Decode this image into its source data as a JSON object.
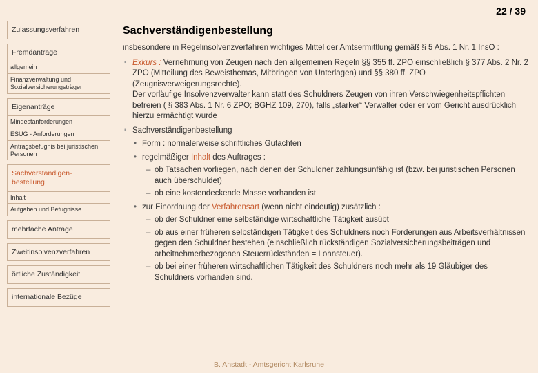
{
  "page": {
    "current": 22,
    "total": 39,
    "display": "22 / 39"
  },
  "colors": {
    "background": "#f9ecdf",
    "border": "#c9b098",
    "highlight": "#c85a2e",
    "footer": "#b08860"
  },
  "sidebar": {
    "items": [
      {
        "label": "Zulassungsverfahren",
        "type": "main"
      },
      {
        "label": "Fremdanträge",
        "type": "main",
        "group": true,
        "subs": [
          {
            "label": "allgemein"
          },
          {
            "label": "Finanzverwaltung und Sozialversicherungsträger"
          }
        ]
      },
      {
        "label": "Eigenanträge",
        "type": "main",
        "group": true,
        "subs": [
          {
            "label": "Mindestanforderungen"
          },
          {
            "label": "ESUG - Anforderungen"
          },
          {
            "label": "Antragsbefugnis bei juristischen Personen"
          }
        ]
      },
      {
        "label": "Sachverständigen-\nbestellung",
        "type": "main",
        "highlight": true,
        "group": true,
        "subs": [
          {
            "label": "Inhalt"
          },
          {
            "label": "Aufgaben und Befugnisse"
          }
        ]
      },
      {
        "label": "mehrfache Anträge",
        "type": "main"
      },
      {
        "label": "Zweitinsolvenzverfahren",
        "type": "main"
      },
      {
        "label": "örtliche Zuständigkeit",
        "type": "main"
      },
      {
        "label": "internationale Bezüge",
        "type": "main"
      }
    ]
  },
  "content": {
    "title": "Sachverständigenbestellung",
    "intro": "insbesondere in Regelinsolvenzverfahren wichtiges Mittel der Amtsermittlung gemäß § 5 Abs. 1 Nr. 1 InsO :",
    "bullets": [
      {
        "prefix_italic": "Exkurs :",
        "text": " Vernehmung von Zeugen nach den allgemeinen Regeln §§ 355 ff. ZPO einschließlich § 377 Abs. 2 Nr. 2 ZPO (Mitteilung des Beweisthemas, Mitbringen von Unterlagen) und §§ 380 ff. ZPO (Zeugnisverweigerungsrechte).\nDer vorläufige Insolvenzverwalter kann statt des Schuldners Zeugen von ihren Verschwiegenheitspflichten befreien ( § 383 Abs. 1 Nr. 6 ZPO; BGHZ 109, 270), falls „starker“ Verwalter oder er vom Gericht ausdrücklich hierzu ermächtigt wurde"
      },
      {
        "text": "Sachverständigenbestellung",
        "subs": [
          {
            "text": "Form : normalerweise schriftliches Gutachten"
          },
          {
            "pre": "regelmäßiger ",
            "hl": "Inhalt",
            "post": " des Auftrages :",
            "subs": [
              {
                "text": "ob Tatsachen vorliegen, nach denen der Schuldner zahlungsunfähig ist (bzw. bei juristischen Personen auch überschuldet)"
              },
              {
                "text": "ob eine kostendeckende Masse vorhanden ist"
              }
            ]
          },
          {
            "pre": "zur Einordnung der ",
            "hl": "Verfahrensart",
            "post": " (wenn nicht eindeutig) zusätzlich :",
            "subs": [
              {
                "text": "ob der Schuldner eine selbständige wirtschaftliche Tätigkeit ausübt"
              },
              {
                "text": "ob aus einer früheren selbständigen Tätigkeit des Schuldners noch Forderungen aus Arbeitsverhältnissen gegen den Schuldner bestehen (einschließlich rückständigen Sozialversicherungsbeiträgen und arbeitnehmerbezogenen Steuerrückständen = Lohnsteuer)."
              },
              {
                "text": "ob bei einer früheren wirtschaftlichen Tätigkeit des Schuldners noch mehr als 19 Gläubiger des Schuldners vorhanden sind."
              }
            ]
          }
        ]
      }
    ]
  },
  "footer": "B. Anstadt - Amtsgericht Karlsruhe"
}
